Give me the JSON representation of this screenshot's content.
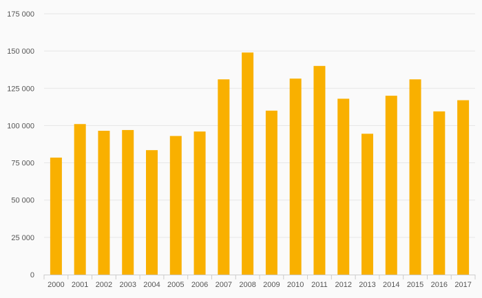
{
  "chart_data": {
    "type": "bar",
    "title": "",
    "xlabel": "",
    "ylabel": "",
    "categories": [
      "2000",
      "2001",
      "2002",
      "2003",
      "2004",
      "2005",
      "2006",
      "2007",
      "2008",
      "2009",
      "2010",
      "2011",
      "2012",
      "2013",
      "2014",
      "2015",
      "2016",
      "2017"
    ],
    "values": [
      78500,
      101000,
      96500,
      97000,
      83500,
      93000,
      96000,
      131000,
      149000,
      110000,
      131500,
      140000,
      118000,
      94500,
      120000,
      131000,
      109500,
      117000
    ],
    "ylim": [
      0,
      175000
    ],
    "yticks": [
      0,
      25000,
      50000,
      75000,
      100000,
      125000,
      150000,
      175000
    ],
    "ytick_labels": [
      "0",
      "25 000",
      "50 000",
      "75 000",
      "100 000",
      "125 000",
      "150 000",
      "175 000"
    ],
    "grid": true,
    "legend": "none",
    "colors": {
      "bar": "#f9b000",
      "grid": "#e6e6e6",
      "axis": "#cccccc",
      "text": "#555555",
      "background": "#fafafa"
    }
  }
}
